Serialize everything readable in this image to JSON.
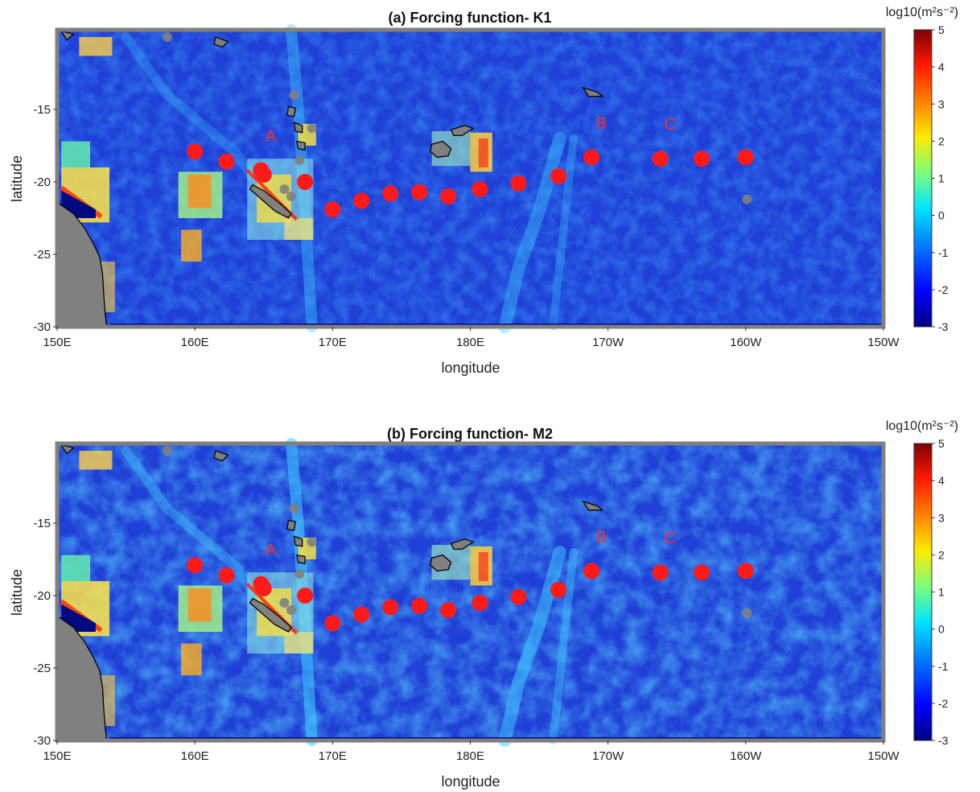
{
  "figure": {
    "panels": [
      {
        "id": "a",
        "title": "(a) Forcing function- K1",
        "xlabel": "longitude",
        "ylabel": "latitude",
        "xticks": [
          "150E",
          "160E",
          "170E",
          "180E",
          "170W",
          "160W",
          "150W"
        ],
        "yticks": [
          "-15",
          "-20",
          "-25",
          "-30"
        ],
        "colorbar": {
          "label": "log10(m²s⁻²)",
          "ticks": [
            "5",
            "4",
            "3",
            "2",
            "1",
            "0",
            "-1",
            "-2",
            "-3"
          ]
        },
        "stations": [
          {
            "lon": 160.0,
            "lat": -17.9
          },
          {
            "lon": 162.3,
            "lat": -18.6
          },
          {
            "lon": 164.8,
            "lat": -19.2
          },
          {
            "lon": 165.0,
            "lat": -19.5
          },
          {
            "lon": 168.0,
            "lat": -20.0
          },
          {
            "lon": 170.0,
            "lat": -21.9
          },
          {
            "lon": 172.1,
            "lat": -21.3
          },
          {
            "lon": 174.2,
            "lat": -20.8
          },
          {
            "lon": 176.3,
            "lat": -20.7
          },
          {
            "lon": 178.4,
            "lat": -21.0
          },
          {
            "lon": 180.7,
            "lat": -20.5
          },
          {
            "lon": 183.5,
            "lat": -20.1
          },
          {
            "lon": 186.4,
            "lat": -19.6
          },
          {
            "lon": 188.8,
            "lat": -18.3
          },
          {
            "lon": 193.8,
            "lat": -18.4
          },
          {
            "lon": 196.8,
            "lat": -18.4
          },
          {
            "lon": 200.0,
            "lat": -18.3
          }
        ],
        "labels": [
          {
            "text": "A",
            "lon": 165.5,
            "lat": -17.2
          },
          {
            "text": "B",
            "lon": 189.5,
            "lat": -16.3
          },
          {
            "text": "C",
            "lon": 194.5,
            "lat": -16.4
          }
        ]
      },
      {
        "id": "b",
        "title": "(b) Forcing function- M2",
        "xlabel": "longitude",
        "ylabel": "latitude",
        "xticks": [
          "150E",
          "160E",
          "170E",
          "180E",
          "170W",
          "160W",
          "150W"
        ],
        "yticks": [
          "-15",
          "-20",
          "-25",
          "-30"
        ],
        "colorbar": {
          "label": "log10(m²s⁻²)",
          "ticks": [
            "5",
            "4",
            "3",
            "2",
            "1",
            "0",
            "-1",
            "-2",
            "-3"
          ]
        },
        "stations": [
          {
            "lon": 160.0,
            "lat": -17.9
          },
          {
            "lon": 162.3,
            "lat": -18.6
          },
          {
            "lon": 164.8,
            "lat": -19.2
          },
          {
            "lon": 165.0,
            "lat": -19.5
          },
          {
            "lon": 168.0,
            "lat": -20.0
          },
          {
            "lon": 170.0,
            "lat": -21.9
          },
          {
            "lon": 172.1,
            "lat": -21.3
          },
          {
            "lon": 174.2,
            "lat": -20.8
          },
          {
            "lon": 176.3,
            "lat": -20.7
          },
          {
            "lon": 178.4,
            "lat": -21.0
          },
          {
            "lon": 180.7,
            "lat": -20.5
          },
          {
            "lon": 183.5,
            "lat": -20.1
          },
          {
            "lon": 186.4,
            "lat": -19.6
          },
          {
            "lon": 188.8,
            "lat": -18.3
          },
          {
            "lon": 193.8,
            "lat": -18.4
          },
          {
            "lon": 196.8,
            "lat": -18.4
          },
          {
            "lon": 200.0,
            "lat": -18.3
          }
        ],
        "labels": [
          {
            "text": "A",
            "lon": 165.5,
            "lat": -17.2
          },
          {
            "text": "B",
            "lon": 189.5,
            "lat": -16.3
          },
          {
            "text": "C",
            "lon": 194.5,
            "lat": -16.4
          }
        ]
      }
    ],
    "colors": {
      "station": "#ff1a1a",
      "label": "#ff2a2a",
      "land": "#808080",
      "ocean_base": "#1f3fd6"
    }
  }
}
